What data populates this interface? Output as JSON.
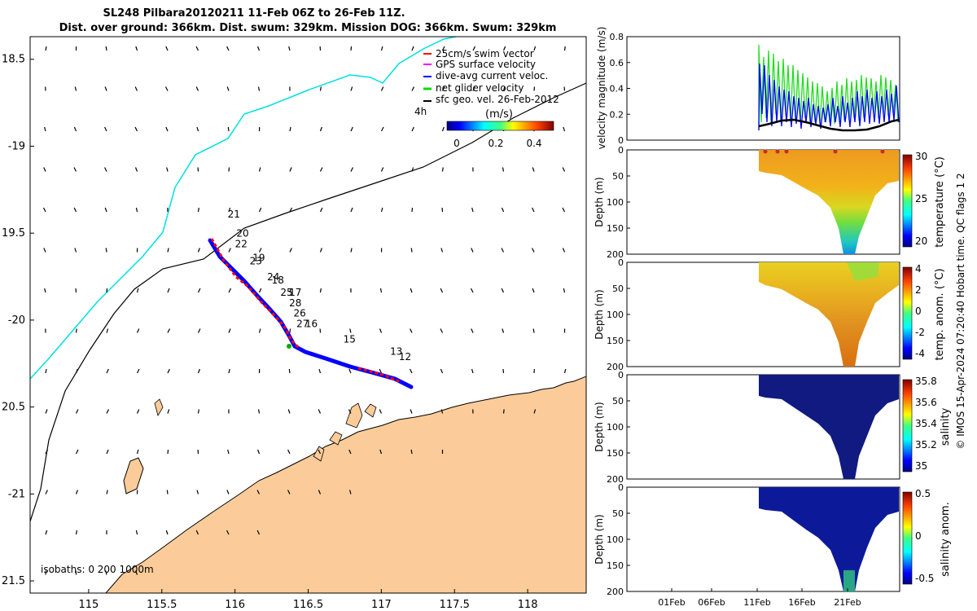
{
  "title_line1": "SL248 Pilbara20120211 11-Feb 06Z to 26-Feb 11Z.",
  "title_line2": "Dist. over ground: 366km. Dist. swum: 329km. Mission DOG: 366km. Swum: 329km",
  "legend": [
    {
      "label": "25cm/s swim vector",
      "color": "#ff0000"
    },
    {
      "label": "GPS surface velocity",
      "color": "#ff00ff"
    },
    {
      "label": "dive-avg current veloc.",
      "color": "#0000ff"
    },
    {
      "label": "net glider velocity",
      "color": "#00dd00"
    },
    {
      "label": "sfc geo. vel. 26-Feb-2012",
      "color": "#000000"
    }
  ],
  "colorbar_units": "(m/s)",
  "colorbar_ticks": [
    "0",
    "0.2",
    "0.4"
  ],
  "label_4h": "4h",
  "isobaths_label": "isobaths: 0   200  1000m",
  "credit": "© IMOS 15-Apr-2024 07:20:40 Hobart time. QC flags 1  2",
  "chart_data": [
    {
      "type": "map",
      "xlim": [
        114.6,
        118.4
      ],
      "ylim": [
        -21.57,
        -18.37
      ],
      "xticks": [
        115,
        115.5,
        116,
        116.5,
        117,
        117.5,
        118
      ],
      "xticklabels": [
        "115",
        "115.5",
        "116",
        "116.5",
        "117",
        "117.5",
        "118"
      ],
      "yticks": [
        -18.5,
        -19,
        -19.5,
        -20,
        -20.5,
        -21,
        -21.5
      ],
      "yticklabels": [
        "18.5",
        "-19",
        "19.5",
        "-20",
        "20.5",
        "-21",
        "21.5"
      ],
      "dive_labels": [
        {
          "text": "21",
          "lon": 115.95,
          "lat": -19.41
        },
        {
          "text": "20",
          "lon": 116.01,
          "lat": -19.52
        },
        {
          "text": "22",
          "lon": 116.0,
          "lat": -19.58
        },
        {
          "text": "19",
          "lon": 116.12,
          "lat": -19.66
        },
        {
          "text": "23",
          "lon": 116.1,
          "lat": -19.68
        },
        {
          "text": "24",
          "lon": 116.22,
          "lat": -19.77
        },
        {
          "text": "18",
          "lon": 116.25,
          "lat": -19.79
        },
        {
          "text": "25",
          "lon": 116.31,
          "lat": -19.86
        },
        {
          "text": "17",
          "lon": 116.37,
          "lat": -19.86
        },
        {
          "text": "28",
          "lon": 116.37,
          "lat": -19.92
        },
        {
          "text": "26",
          "lon": 116.4,
          "lat": -19.98
        },
        {
          "text": "27",
          "lon": 116.42,
          "lat": -20.04
        },
        {
          "text": "16",
          "lon": 116.48,
          "lat": -20.04
        },
        {
          "text": "15",
          "lon": 116.74,
          "lat": -20.13
        },
        {
          "text": "13",
          "lon": 117.06,
          "lat": -20.2
        },
        {
          "text": "12",
          "lon": 117.12,
          "lat": -20.23
        }
      ]
    },
    {
      "type": "line",
      "ylabel": "velocity magnitude (m/s)",
      "ylim": [
        0,
        0.8
      ],
      "yticks": [
        0,
        0.2,
        0.4,
        0.6,
        0.8
      ],
      "series": [
        {
          "name": "net glider velocity",
          "color": "#22dd22"
        },
        {
          "name": "dive-avg current veloc.",
          "color": "#0000ff"
        },
        {
          "name": "sfc geo. vel. 26-Feb-2012",
          "color": "#000000"
        }
      ]
    },
    {
      "type": "heatmap",
      "ylabel": "Depth (m)",
      "ylim": [
        200,
        0
      ],
      "yticks": [
        0,
        50,
        100,
        150,
        200
      ],
      "cbar_label": "temperature (°C)",
      "cbar_ticks": [
        "30",
        "25",
        "20"
      ]
    },
    {
      "type": "heatmap",
      "ylabel": "Depth (m)",
      "ylim": [
        200,
        0
      ],
      "yticks": [
        0,
        50,
        100,
        150,
        200
      ],
      "cbar_label": "temp. anom. (°C)",
      "cbar_ticks": [
        "4",
        "2",
        "0",
        "-2",
        "-4"
      ]
    },
    {
      "type": "heatmap",
      "ylabel": "Depth (m)",
      "ylim": [
        200,
        0
      ],
      "yticks": [
        0,
        50,
        100,
        150,
        200
      ],
      "cbar_label": "salinity",
      "cbar_ticks": [
        "35.8",
        "35.6",
        "35.4",
        "35.2",
        "35"
      ]
    },
    {
      "type": "heatmap",
      "ylabel": "Depth (m)",
      "ylim": [
        200,
        0
      ],
      "yticks": [
        0,
        50,
        100,
        150,
        200
      ],
      "cbar_label": "salinity anom.",
      "cbar_ticks": [
        "0.5",
        "0",
        "-0.5"
      ],
      "xticklabels": [
        "01Feb",
        "06Feb",
        "11Feb",
        "16Feb",
        "21Feb"
      ]
    }
  ]
}
